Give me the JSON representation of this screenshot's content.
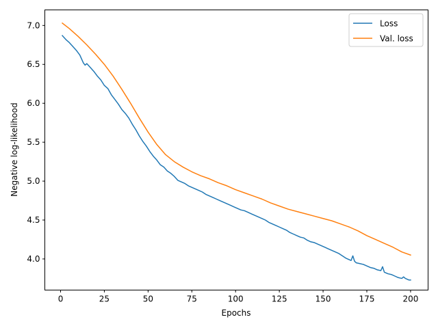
{
  "chart_data": {
    "type": "line",
    "title": "",
    "xlabel": "Epochs",
    "ylabel": "Negative log-likelihood",
    "xlim": [
      -9,
      210
    ],
    "ylim": [
      3.6,
      7.2
    ],
    "xticks": [
      0,
      25,
      50,
      75,
      100,
      125,
      150,
      175,
      200
    ],
    "yticks": [
      4.0,
      4.5,
      5.0,
      5.5,
      6.0,
      6.5,
      7.0
    ],
    "grid": false,
    "legend_position": "top-right",
    "series": [
      {
        "name": "Loss",
        "color": "#1f77b4",
        "points": [
          [
            1,
            6.87
          ],
          [
            3,
            6.82
          ],
          [
            5,
            6.78
          ],
          [
            7,
            6.73
          ],
          [
            9,
            6.68
          ],
          [
            11,
            6.62
          ],
          [
            13,
            6.52
          ],
          [
            14,
            6.49
          ],
          [
            15,
            6.51
          ],
          [
            17,
            6.46
          ],
          [
            19,
            6.41
          ],
          [
            21,
            6.35
          ],
          [
            23,
            6.3
          ],
          [
            25,
            6.23
          ],
          [
            27,
            6.19
          ],
          [
            29,
            6.11
          ],
          [
            31,
            6.05
          ],
          [
            33,
            5.99
          ],
          [
            35,
            5.92
          ],
          [
            37,
            5.87
          ],
          [
            39,
            5.81
          ],
          [
            41,
            5.73
          ],
          [
            43,
            5.66
          ],
          [
            45,
            5.58
          ],
          [
            47,
            5.51
          ],
          [
            49,
            5.45
          ],
          [
            51,
            5.38
          ],
          [
            53,
            5.32
          ],
          [
            55,
            5.27
          ],
          [
            57,
            5.21
          ],
          [
            59,
            5.18
          ],
          [
            61,
            5.13
          ],
          [
            63,
            5.1
          ],
          [
            65,
            5.06
          ],
          [
            67,
            5.01
          ],
          [
            69,
            4.99
          ],
          [
            71,
            4.97
          ],
          [
            73,
            4.94
          ],
          [
            75,
            4.92
          ],
          [
            77,
            4.9
          ],
          [
            79,
            4.88
          ],
          [
            81,
            4.86
          ],
          [
            83,
            4.83
          ],
          [
            85,
            4.81
          ],
          [
            87,
            4.79
          ],
          [
            89,
            4.77
          ],
          [
            91,
            4.75
          ],
          [
            93,
            4.73
          ],
          [
            95,
            4.71
          ],
          [
            97,
            4.69
          ],
          [
            99,
            4.67
          ],
          [
            101,
            4.65
          ],
          [
            103,
            4.63
          ],
          [
            105,
            4.62
          ],
          [
            107,
            4.6
          ],
          [
            109,
            4.58
          ],
          [
            111,
            4.56
          ],
          [
            113,
            4.54
          ],
          [
            115,
            4.52
          ],
          [
            117,
            4.5
          ],
          [
            119,
            4.47
          ],
          [
            121,
            4.45
          ],
          [
            123,
            4.43
          ],
          [
            125,
            4.41
          ],
          [
            127,
            4.39
          ],
          [
            129,
            4.37
          ],
          [
            131,
            4.34
          ],
          [
            133,
            4.32
          ],
          [
            135,
            4.3
          ],
          [
            137,
            4.28
          ],
          [
            139,
            4.27
          ],
          [
            141,
            4.24
          ],
          [
            143,
            4.22
          ],
          [
            145,
            4.21
          ],
          [
            147,
            4.19
          ],
          [
            149,
            4.17
          ],
          [
            151,
            4.15
          ],
          [
            153,
            4.13
          ],
          [
            155,
            4.11
          ],
          [
            157,
            4.09
          ],
          [
            159,
            4.07
          ],
          [
            161,
            4.04
          ],
          [
            163,
            4.01
          ],
          [
            165,
            3.99
          ],
          [
            166,
            3.98
          ],
          [
            167,
            4.04
          ],
          [
            168,
            3.97
          ],
          [
            169,
            3.95
          ],
          [
            171,
            3.94
          ],
          [
            173,
            3.93
          ],
          [
            175,
            3.91
          ],
          [
            177,
            3.89
          ],
          [
            179,
            3.88
          ],
          [
            181,
            3.86
          ],
          [
            183,
            3.85
          ],
          [
            184,
            3.9
          ],
          [
            185,
            3.83
          ],
          [
            187,
            3.81
          ],
          [
            189,
            3.8
          ],
          [
            191,
            3.78
          ],
          [
            193,
            3.76
          ],
          [
            195,
            3.75
          ],
          [
            196,
            3.77
          ],
          [
            197,
            3.75
          ],
          [
            199,
            3.73
          ],
          [
            200,
            3.73
          ]
        ]
      },
      {
        "name": "Val. loss",
        "color": "#ff7f0e",
        "points": [
          [
            1,
            7.03
          ],
          [
            5,
            6.96
          ],
          [
            10,
            6.86
          ],
          [
            15,
            6.75
          ],
          [
            20,
            6.63
          ],
          [
            25,
            6.5
          ],
          [
            30,
            6.35
          ],
          [
            35,
            6.18
          ],
          [
            40,
            6.0
          ],
          [
            45,
            5.81
          ],
          [
            50,
            5.63
          ],
          [
            55,
            5.47
          ],
          [
            60,
            5.34
          ],
          [
            65,
            5.25
          ],
          [
            70,
            5.18
          ],
          [
            75,
            5.12
          ],
          [
            80,
            5.07
          ],
          [
            85,
            5.03
          ],
          [
            90,
            4.98
          ],
          [
            95,
            4.94
          ],
          [
            100,
            4.89
          ],
          [
            105,
            4.85
          ],
          [
            110,
            4.81
          ],
          [
            115,
            4.77
          ],
          [
            120,
            4.72
          ],
          [
            125,
            4.68
          ],
          [
            130,
            4.64
          ],
          [
            135,
            4.61
          ],
          [
            140,
            4.58
          ],
          [
            145,
            4.55
          ],
          [
            150,
            4.52
          ],
          [
            155,
            4.49
          ],
          [
            160,
            4.45
          ],
          [
            165,
            4.41
          ],
          [
            170,
            4.36
          ],
          [
            175,
            4.3
          ],
          [
            180,
            4.25
          ],
          [
            185,
            4.2
          ],
          [
            190,
            4.15
          ],
          [
            195,
            4.09
          ],
          [
            200,
            4.05
          ]
        ]
      }
    ]
  }
}
